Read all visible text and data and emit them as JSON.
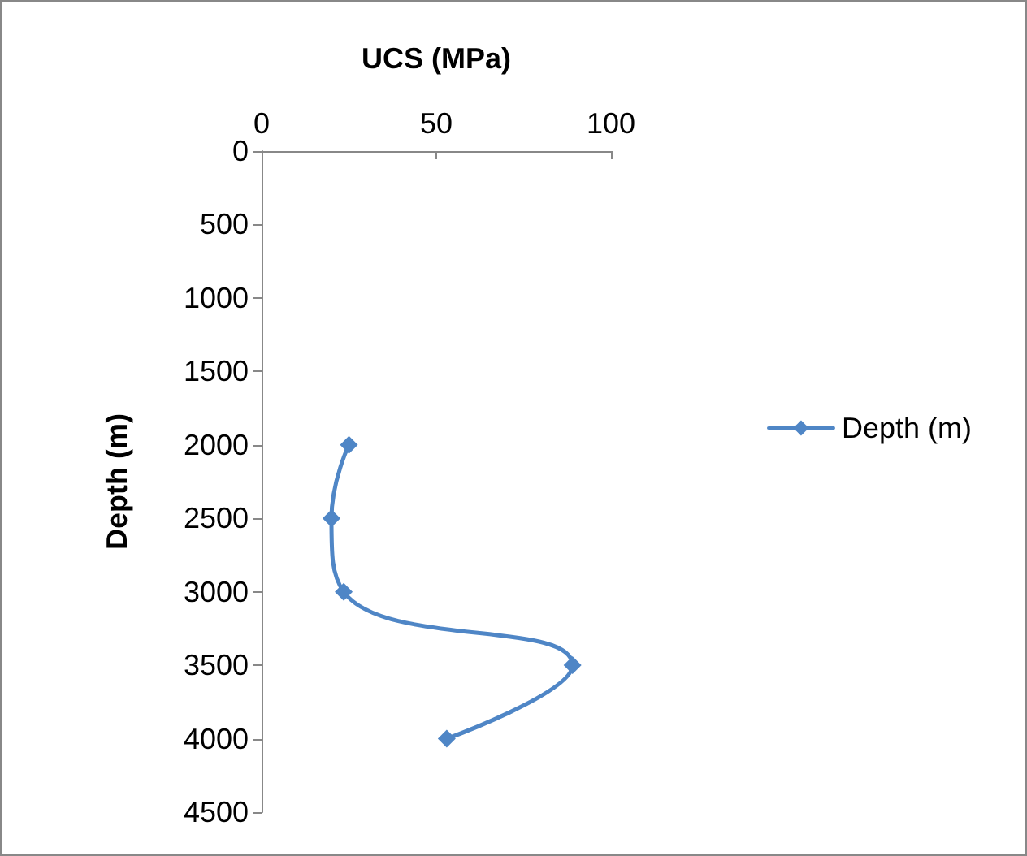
{
  "chart_data": {
    "type": "line",
    "xlabel": "UCS (MPa)",
    "ylabel": "Depth (m)",
    "x": [
      25,
      20,
      23.5,
      89,
      53
    ],
    "series": [
      {
        "name": "Depth (m)",
        "color": "#4f86c6",
        "values": [
          2000,
          2500,
          3000,
          3500,
          4000
        ]
      }
    ],
    "xlim": [
      0,
      100
    ],
    "xticks": [
      0,
      50,
      100
    ],
    "ylim": [
      4500,
      0
    ],
    "yticks": [
      0,
      500,
      1000,
      1500,
      2000,
      2500,
      3000,
      3500,
      4000,
      4500
    ],
    "legend": "right",
    "marker": "diamond"
  }
}
